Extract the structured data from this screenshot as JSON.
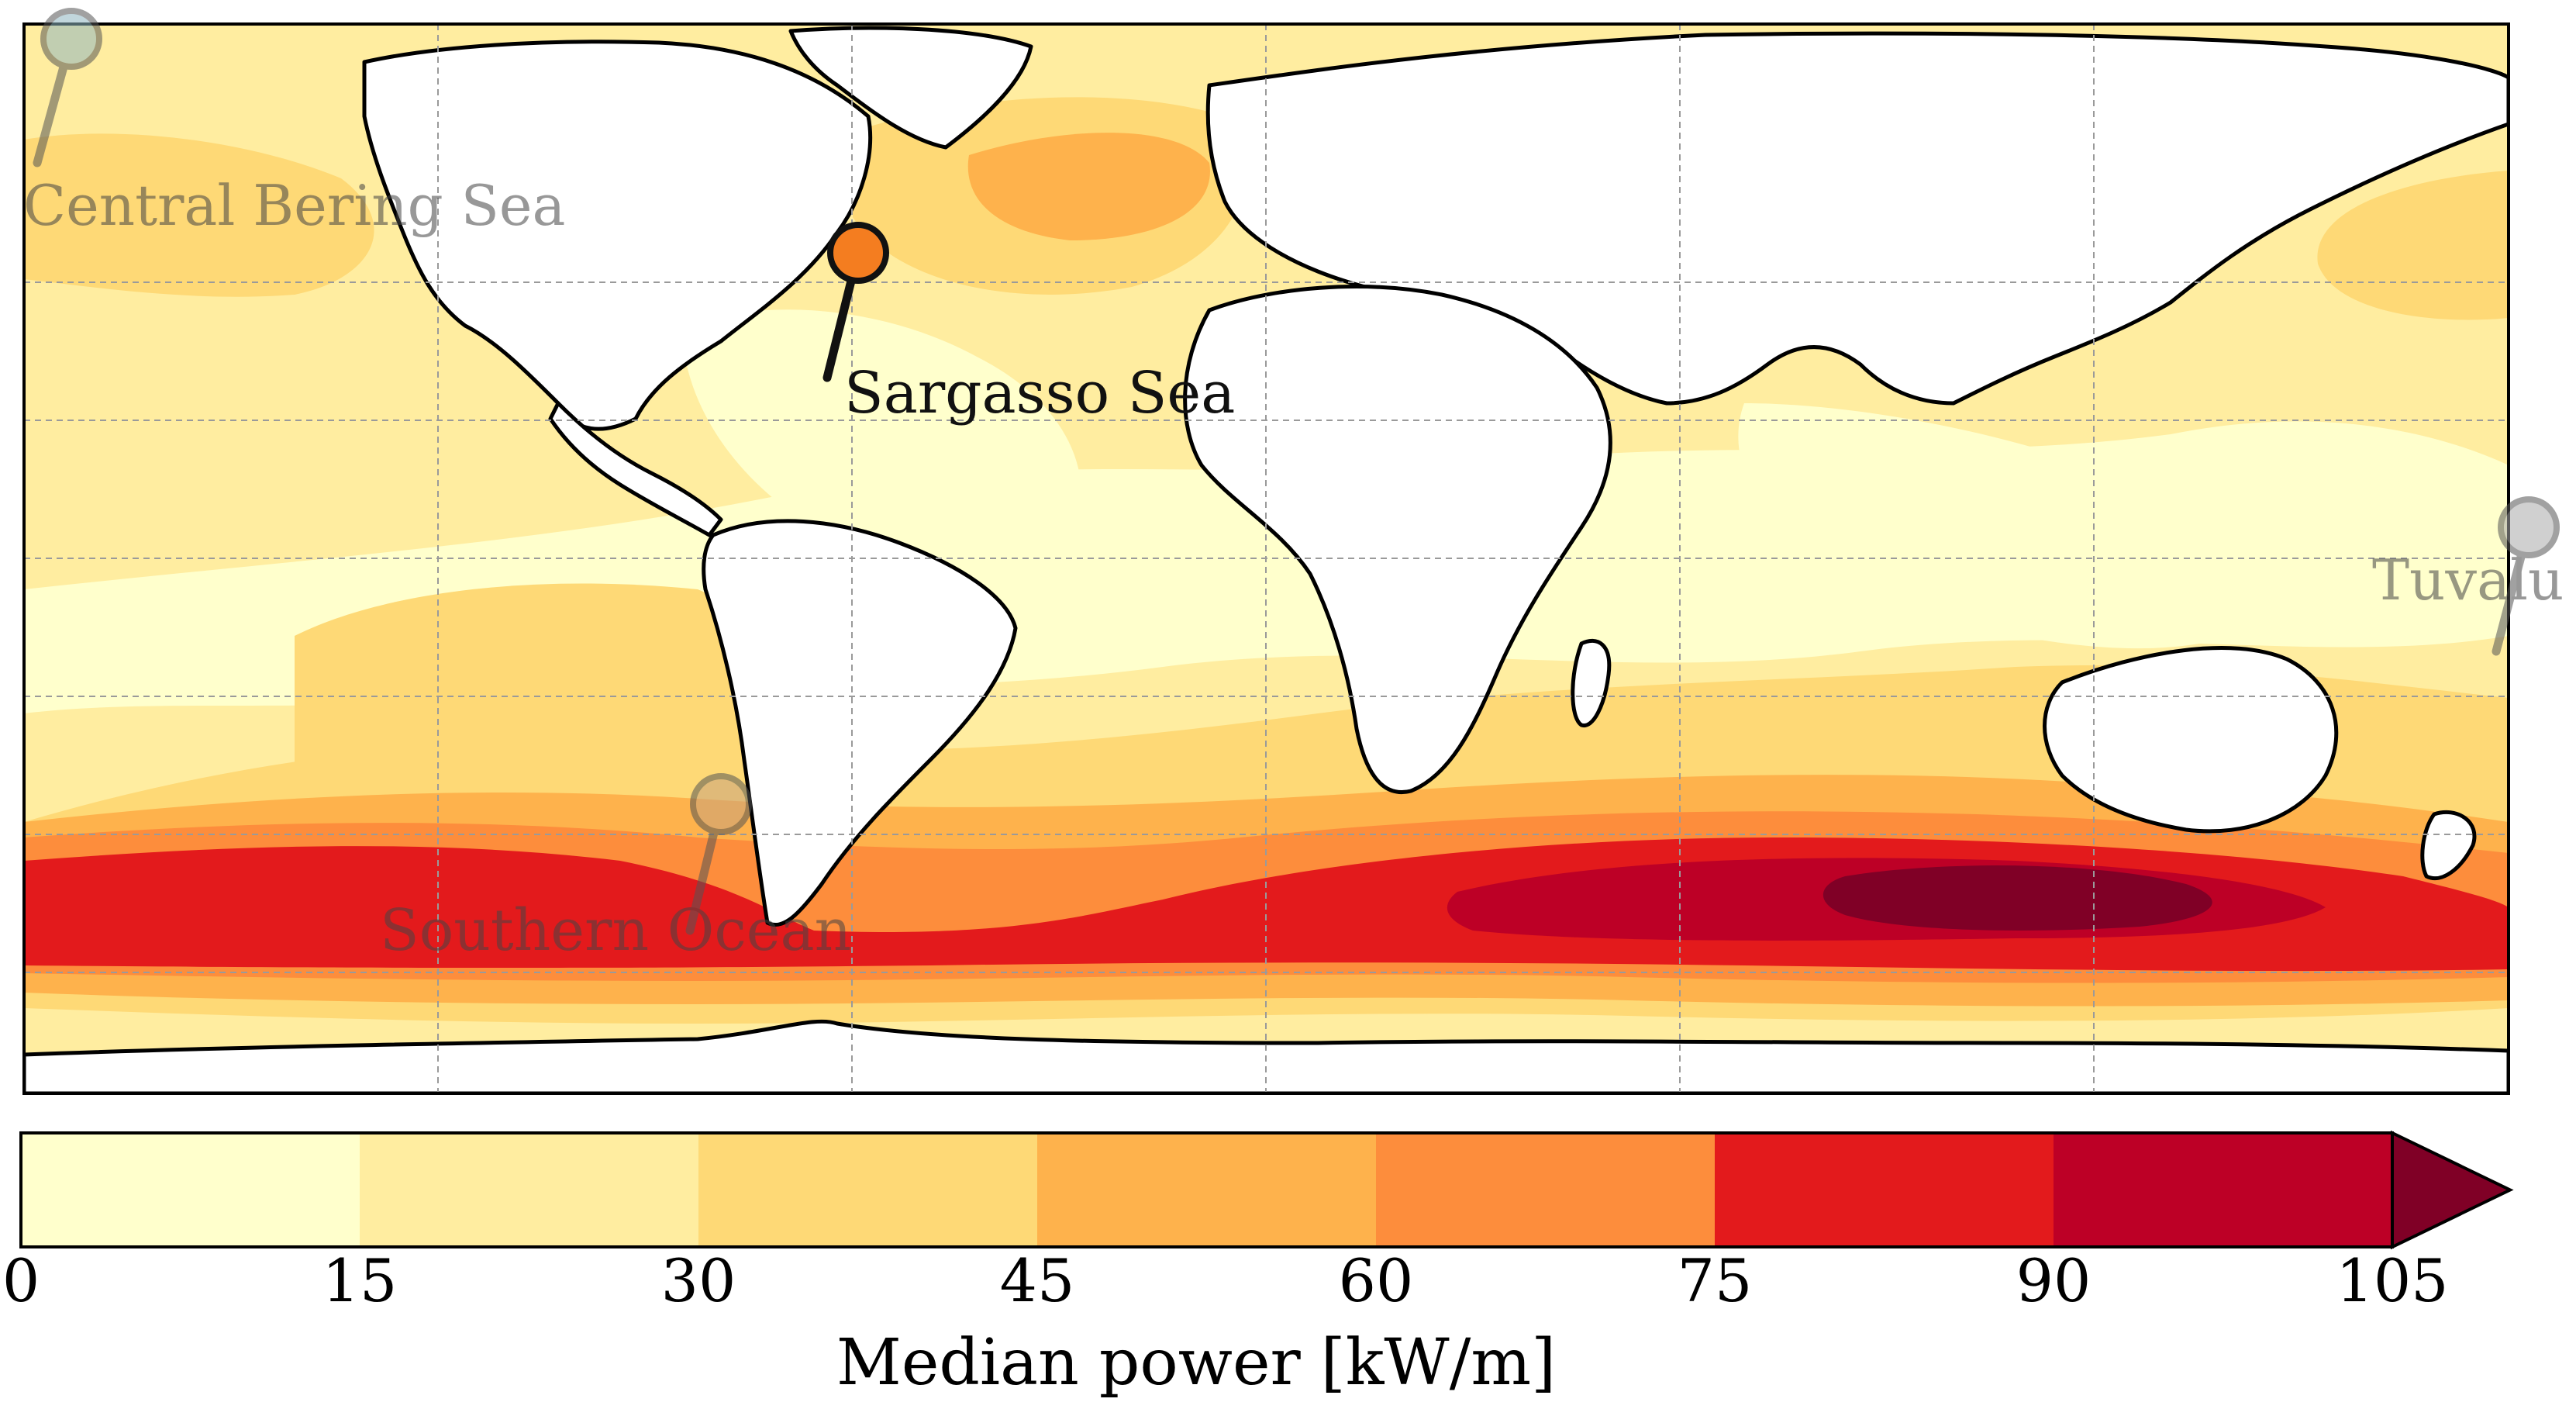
{
  "map": {
    "projection": "equirectangular",
    "grid": true,
    "land_color": "#ffffff",
    "coastline_color": "#000000"
  },
  "colorbar": {
    "label": "Median power [kW/m]",
    "ticks": [
      "0",
      "15",
      "30",
      "45",
      "60",
      "75",
      "90",
      "105"
    ],
    "bins": [
      {
        "from": 0,
        "to": 15,
        "color": "#ffffcc"
      },
      {
        "from": 15,
        "to": 30,
        "color": "#ffeda0"
      },
      {
        "from": 30,
        "to": 45,
        "color": "#fed976"
      },
      {
        "from": 45,
        "to": 60,
        "color": "#feb24c"
      },
      {
        "from": 60,
        "to": 75,
        "color": "#fd8d3c"
      },
      {
        "from": 75,
        "to": 90,
        "color": "#e31a1c"
      },
      {
        "from": 90,
        "to": 105,
        "color": "#bd0026"
      }
    ],
    "extend_color": "#800026",
    "extend_max": true
  },
  "markers": [
    {
      "id": "central-bering-sea",
      "label": "Central Bering Sea",
      "color": "#8fb6c0",
      "highlighted": false
    },
    {
      "id": "sargasso-sea",
      "label": "Sargasso Sea",
      "color": "#f47d20",
      "highlighted": true
    },
    {
      "id": "tuvalu",
      "label": "Tuvalu",
      "color": "#aaaaaa",
      "highlighted": false
    },
    {
      "id": "southern-ocean",
      "label": "Southern Ocean",
      "color": "#c8a27d",
      "highlighted": false
    }
  ]
}
